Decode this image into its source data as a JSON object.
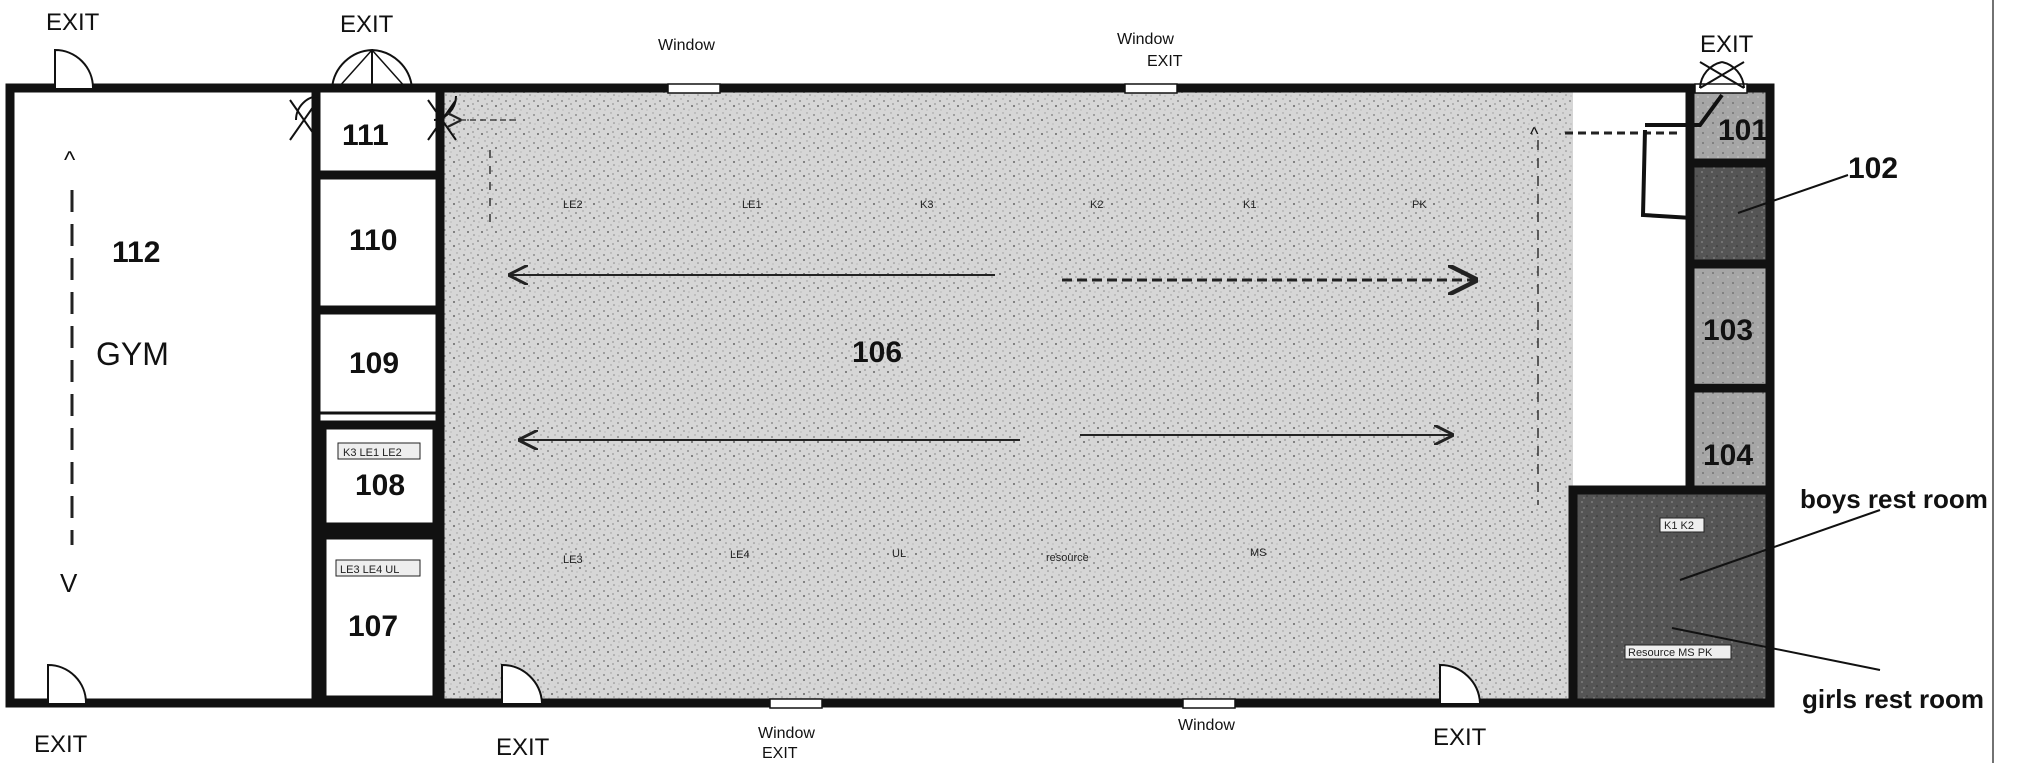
{
  "rooms": {
    "r101": "101",
    "r102": "102",
    "r103": "103",
    "r104": "104",
    "r106": "106",
    "r107": "107",
    "r108": "108",
    "r109": "109",
    "r110": "110",
    "r111": "111",
    "r112": "112",
    "gym": "GYM"
  },
  "exit_label": "EXIT",
  "window_label": "Window",
  "side_labels": {
    "boys": "boys rest room",
    "girls": "girls rest room"
  },
  "room_tags": {
    "r108": "K3 LE1 LE2",
    "r107": "LE3 LE4 UL",
    "boys_tag": "K1 K2",
    "girls_tag": "Resource MS PK"
  },
  "stations_top": [
    "LE2",
    "LE1",
    "K3",
    "K2",
    "K1",
    "PK"
  ],
  "stations_bottom": [
    "LE3",
    "LE4",
    "UL",
    "resource",
    "MS"
  ],
  "arrow_marks": {
    "up": "^",
    "down": "V"
  },
  "colors": {
    "wall": "#111111",
    "speckle_floor": "#c8c8c8",
    "dark_room": "#5a5a5a",
    "mid_room": "#9a9a9a"
  }
}
